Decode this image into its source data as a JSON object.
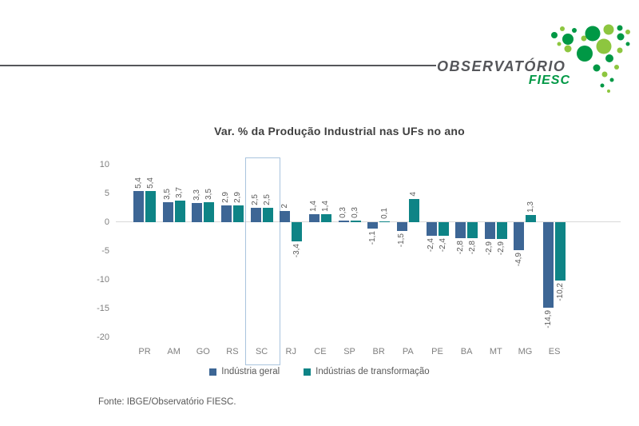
{
  "logo": {
    "title": "OBSERVATÓRIO",
    "subtitle": "FIESC",
    "colors": {
      "gray": "#55565A",
      "dark_green": "#009845",
      "light_green": "#8DC63F"
    }
  },
  "chart_data": {
    "type": "bar",
    "title": "Var. % da Produção Industrial nas UFs no ano",
    "categories": [
      "PR",
      "AM",
      "GO",
      "RS",
      "SC",
      "RJ",
      "CE",
      "SP",
      "BR",
      "PA",
      "PE",
      "BA",
      "MT",
      "MG",
      "ES"
    ],
    "series": [
      {
        "name": "Indústria geral",
        "color": "#3D6695",
        "values": [
          5.4,
          3.5,
          3.3,
          2.9,
          2.5,
          2,
          1.4,
          0.3,
          -1.1,
          -1.5,
          -2.4,
          -2.8,
          -2.9,
          -4.9,
          -14.9
        ]
      },
      {
        "name": "Indústrias de transformação",
        "color": "#0E8486",
        "values": [
          5.4,
          3.7,
          3.5,
          2.9,
          2.5,
          -3.4,
          1.4,
          0.3,
          0.1,
          4,
          -2.4,
          -2.8,
          -2.9,
          1.3,
          -10.2
        ]
      }
    ],
    "y_axis_ticks": [
      10,
      5,
      0,
      -5,
      -10,
      -15,
      -20
    ],
    "ylim": [
      -20,
      10
    ],
    "decimal_separator": ",",
    "grid": false,
    "legend_position": "bottom",
    "highlight_category": "SC",
    "highlight_box_color": "#A9C4DE"
  },
  "footer": {
    "source": "Fonte: IBGE/Observatório FIESC."
  }
}
